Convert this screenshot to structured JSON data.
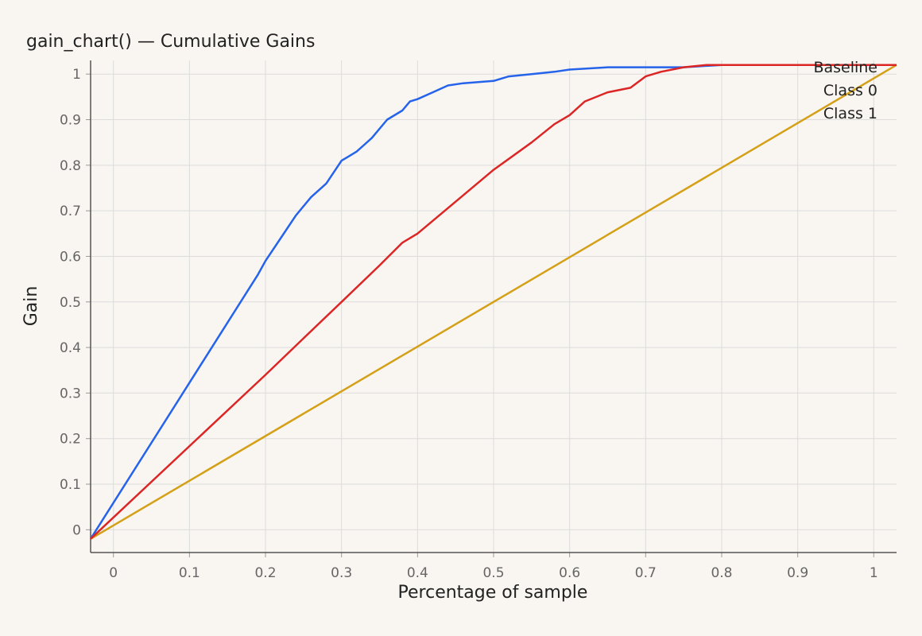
{
  "chart_data": {
    "type": "line",
    "title": "gain_chart() — Cumulative Gains",
    "xlabel": "Percentage of sample",
    "ylabel": "Gain",
    "xlim": [
      -0.03,
      1.03
    ],
    "ylim": [
      -0.05,
      1.03
    ],
    "xticks": [
      0,
      0.1,
      0.2,
      0.3,
      0.4,
      0.5,
      0.6,
      0.7,
      0.8,
      0.9,
      1
    ],
    "yticks": [
      0,
      0.1,
      0.2,
      0.3,
      0.4,
      0.5,
      0.6,
      0.7,
      0.8,
      0.9,
      1
    ],
    "grid": true,
    "legend": "top-right",
    "series": [
      {
        "name": "Baseline",
        "color": "#d4a017",
        "x": [
          -0.03,
          1.03
        ],
        "y": [
          -0.02,
          1.02
        ]
      },
      {
        "name": "Class 0",
        "color": "#2563eb",
        "x": [
          -0.03,
          0.19,
          0.2,
          0.22,
          0.24,
          0.26,
          0.28,
          0.3,
          0.31,
          0.32,
          0.33,
          0.34,
          0.36,
          0.38,
          0.39,
          0.4,
          0.42,
          0.44,
          0.46,
          0.5,
          0.52,
          0.55,
          0.58,
          0.6,
          0.65,
          0.7,
          0.75,
          0.8,
          0.85,
          1.03
        ],
        "y": [
          -0.02,
          0.56,
          0.59,
          0.64,
          0.69,
          0.73,
          0.76,
          0.81,
          0.82,
          0.83,
          0.845,
          0.86,
          0.9,
          0.92,
          0.94,
          0.945,
          0.96,
          0.975,
          0.98,
          0.985,
          0.995,
          1.0,
          1.005,
          1.01,
          1.015,
          1.015,
          1.015,
          1.02,
          1.02,
          1.02
        ]
      },
      {
        "name": "Class 1",
        "color": "#dc2626",
        "x": [
          -0.03,
          0.2,
          0.25,
          0.3,
          0.35,
          0.38,
          0.4,
          0.45,
          0.5,
          0.55,
          0.58,
          0.6,
          0.62,
          0.65,
          0.68,
          0.7,
          0.72,
          0.75,
          0.78,
          0.8,
          0.85,
          1.03
        ],
        "y": [
          -0.02,
          0.34,
          0.42,
          0.5,
          0.58,
          0.63,
          0.65,
          0.72,
          0.79,
          0.85,
          0.89,
          0.91,
          0.94,
          0.96,
          0.97,
          0.995,
          1.005,
          1.015,
          1.02,
          1.02,
          1.02,
          1.02
        ]
      }
    ]
  }
}
